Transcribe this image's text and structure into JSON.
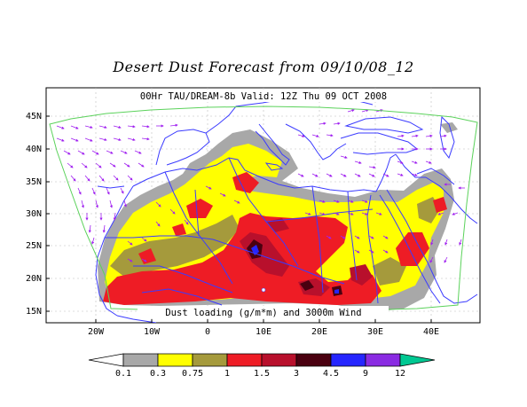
{
  "title": "Desert Dust Forecast from 09/10/08_12",
  "subtitle": "00Hr TAU/DREAM-8b Valid: 12Z Thu 09 OCT 2008",
  "caption": "Dust loading (g/m*m) and 3000m Wind",
  "lat_labels": [
    "45N",
    "40N",
    "35N",
    "30N",
    "25N",
    "20N",
    "15N"
  ],
  "lon_labels": [
    "20W",
    "10W",
    "0",
    "10E",
    "20E",
    "30E",
    "40E"
  ],
  "colorbar": {
    "labels": [
      "0.1",
      "0.3",
      "0.75",
      "1",
      "1.5",
      "3",
      "4.5",
      "9",
      "12"
    ],
    "colors": [
      "#ffffff",
      "#a8a8a8",
      "#ffff00",
      "#a59a3c",
      "#ee1c25",
      "#b8102c",
      "#4a0010",
      "#2626ff",
      "#8a2be2",
      "#00c892"
    ]
  },
  "colors": {
    "land_border": "#3b3bff",
    "domain_outline": "#5bd25b",
    "wind_vectors": "#a020f0"
  }
}
